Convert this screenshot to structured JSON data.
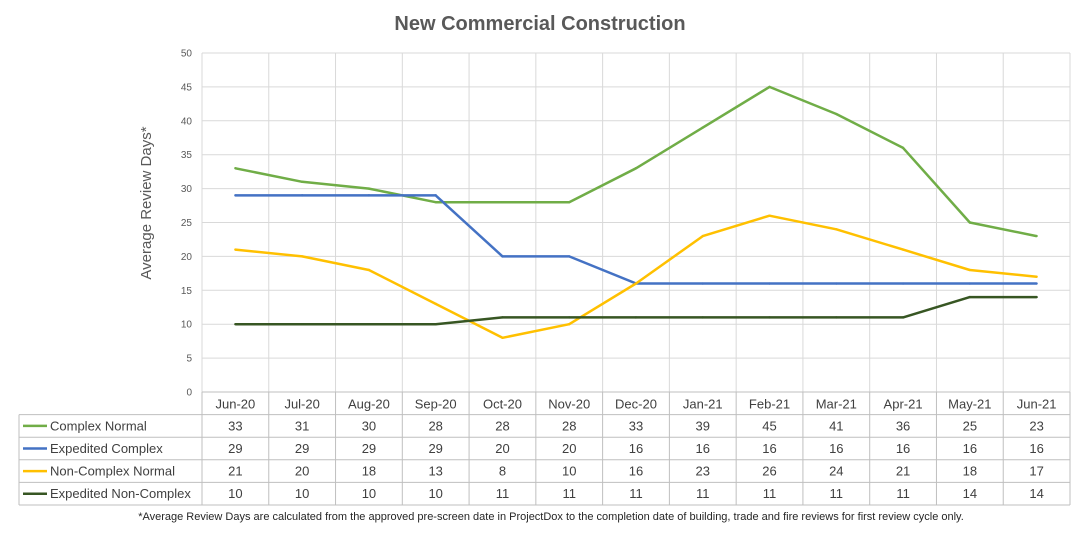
{
  "chart_data": {
    "type": "line",
    "title": "New Commercial Construction",
    "ylabel": "Average Review Days*",
    "xlabel": "",
    "ylim": [
      0,
      50
    ],
    "ytick_step": 5,
    "grid": true,
    "legend": "data-table-left",
    "categories": [
      "Jun-20",
      "Jul-20",
      "Aug-20",
      "Sep-20",
      "Oct-20",
      "Nov-20",
      "Dec-20",
      "Jan-21",
      "Feb-21",
      "Mar-21",
      "Apr-21",
      "May-21",
      "Jun-21"
    ],
    "series": [
      {
        "name": "Complex Normal",
        "color": "#70AD47",
        "values": [
          33,
          31,
          30,
          28,
          28,
          28,
          33,
          39,
          45,
          41,
          36,
          25,
          23
        ]
      },
      {
        "name": "Expedited Complex",
        "color": "#4472C4",
        "values": [
          29,
          29,
          29,
          29,
          20,
          20,
          16,
          16,
          16,
          16,
          16,
          16,
          16
        ]
      },
      {
        "name": "Non-Complex Normal",
        "color": "#FFC000",
        "values": [
          21,
          20,
          18,
          13,
          8,
          10,
          16,
          23,
          26,
          24,
          21,
          18,
          17
        ]
      },
      {
        "name": "Expedited Non-Complex",
        "color": "#375623",
        "values": [
          10,
          10,
          10,
          10,
          11,
          11,
          11,
          11,
          11,
          11,
          11,
          14,
          14
        ]
      }
    ],
    "footnote": "*Average Review Days are calculated from the approved pre-screen date in ProjectDox to the completion date of building, trade and fire reviews for first review cycle only."
  }
}
